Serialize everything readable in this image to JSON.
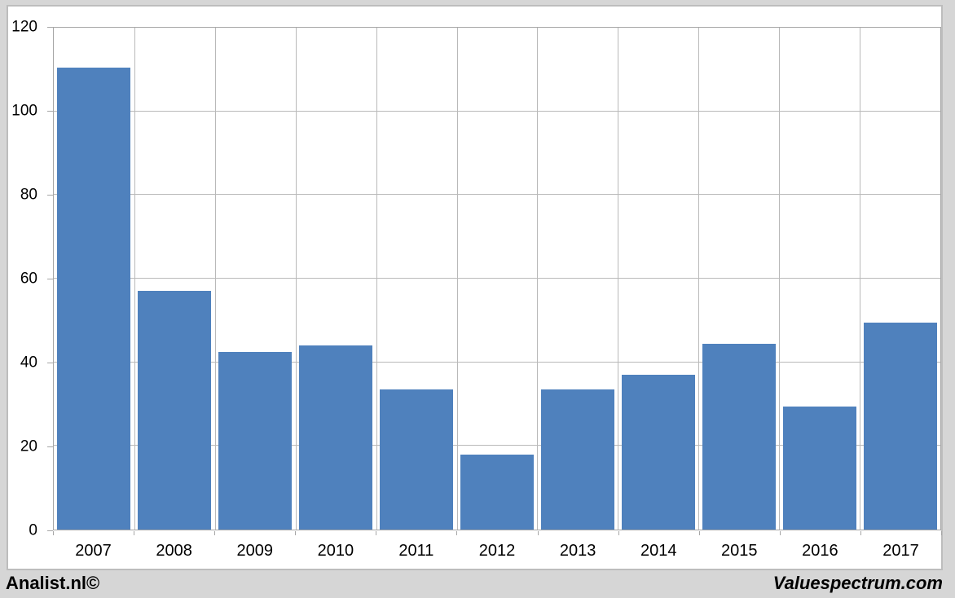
{
  "chart_data": {
    "type": "bar",
    "title": "",
    "xlabel": "",
    "ylabel": "",
    "categories": [
      "2007",
      "2008",
      "2009",
      "2010",
      "2011",
      "2012",
      "2013",
      "2014",
      "2015",
      "2016",
      "2017"
    ],
    "values": [
      110.5,
      57,
      42.5,
      44,
      33.5,
      18,
      33.5,
      37,
      44.5,
      29.5,
      49.5
    ],
    "ylim": [
      0,
      120
    ],
    "yticks": [
      0,
      20,
      40,
      60,
      80,
      100,
      120
    ],
    "grid": true,
    "legend_position": "none",
    "bar_color": "#4F81BD"
  },
  "branding": {
    "left": "Analist.nl©",
    "right": "Valuespectrum.com"
  },
  "colors": {
    "background": "#d6d6d6",
    "canvas": "#ffffff",
    "gridline": "#b9b9b9",
    "axis": "#a6a6a6",
    "bar": "#4F81BD",
    "text": "#000000"
  }
}
